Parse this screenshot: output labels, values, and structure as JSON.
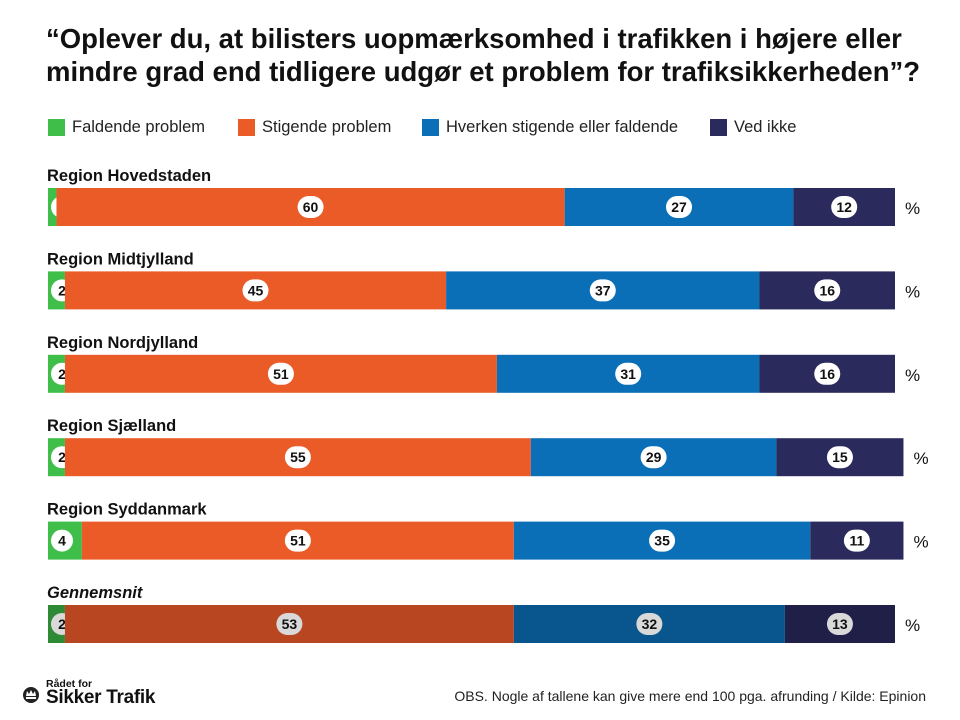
{
  "title": "“Oplever du, at bilisters uopmærksomhed i trafikken i højere eller mindre grad end tidligere udgør et problem for trafiksikkerheden”?",
  "colors": {
    "faldende": "#3fbf4a",
    "stigende": "#ea5b27",
    "hverken": "#0b6fb8",
    "vedikke": "#2a2a5c",
    "faldende_avg": "#2f8a36",
    "stigende_avg": "#b84620",
    "hverken_avg": "#09558e",
    "vedikke_avg": "#1f1f47"
  },
  "chart_data": {
    "type": "bar",
    "orientation": "horizontal-stacked",
    "unit": "%",
    "series": [
      {
        "name": "Faldende problem",
        "values": [
          1,
          2,
          2,
          2,
          4,
          2
        ]
      },
      {
        "name": "Stigende problem",
        "values": [
          60,
          45,
          51,
          55,
          51,
          53
        ]
      },
      {
        "name": "Hverken stigende eller faldende",
        "values": [
          27,
          37,
          31,
          29,
          35,
          32
        ]
      },
      {
        "name": "Ved ikke",
        "values": [
          12,
          16,
          16,
          15,
          11,
          13
        ]
      }
    ],
    "categories": [
      "Region Hovedstaden",
      "Region Midtjylland",
      "Region Nordjylland",
      "Region Sjælland",
      "Region Syddanmark",
      "Gennemsnit"
    ],
    "legend_position": "top"
  },
  "footer": {
    "logo_line1": "Rådet for",
    "logo_line2": "Sikker Trafik",
    "note": "OBS. Nogle af tallene kan give mere end 100 pga. afrunding / Kilde: Epinion"
  }
}
